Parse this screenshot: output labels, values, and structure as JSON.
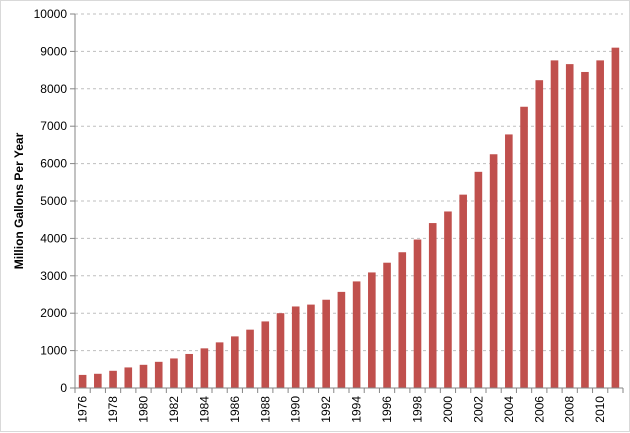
{
  "chart_data": {
    "type": "bar",
    "title": "",
    "xlabel": "",
    "ylabel": "Million Gallons Per Year",
    "ylim": [
      0,
      10000
    ],
    "y_ticks": [
      0,
      1000,
      2000,
      3000,
      4000,
      5000,
      6000,
      7000,
      8000,
      9000,
      10000
    ],
    "grid": "horizontal dashed",
    "legend": "none",
    "bar_color": "#c0504d",
    "categories": [
      "1976",
      "1977",
      "1978",
      "1979",
      "1980",
      "1981",
      "1982",
      "1983",
      "1984",
      "1985",
      "1986",
      "1987",
      "1988",
      "1989",
      "1990",
      "1991",
      "1992",
      "1993",
      "1994",
      "1995",
      "1996",
      "1997",
      "1998",
      "1999",
      "2000",
      "2001",
      "2002",
      "2003",
      "2004",
      "2005",
      "2006",
      "2007",
      "2008",
      "2009",
      "2010",
      "2011"
    ],
    "x_tick_labels": [
      "1976",
      "1978",
      "1980",
      "1982",
      "1984",
      "1986",
      "1988",
      "1990",
      "1992",
      "1994",
      "1996",
      "1998",
      "2000",
      "2002",
      "2004",
      "2006",
      "2008",
      "2010"
    ],
    "values": [
      350,
      380,
      460,
      550,
      620,
      700,
      790,
      910,
      1060,
      1220,
      1380,
      1560,
      1780,
      2000,
      2180,
      2230,
      2360,
      2570,
      2850,
      3090,
      3350,
      3630,
      3970,
      4410,
      4720,
      5170,
      5780,
      6250,
      6780,
      7520,
      8230,
      8760,
      8660,
      8450,
      8760,
      9100
    ]
  }
}
